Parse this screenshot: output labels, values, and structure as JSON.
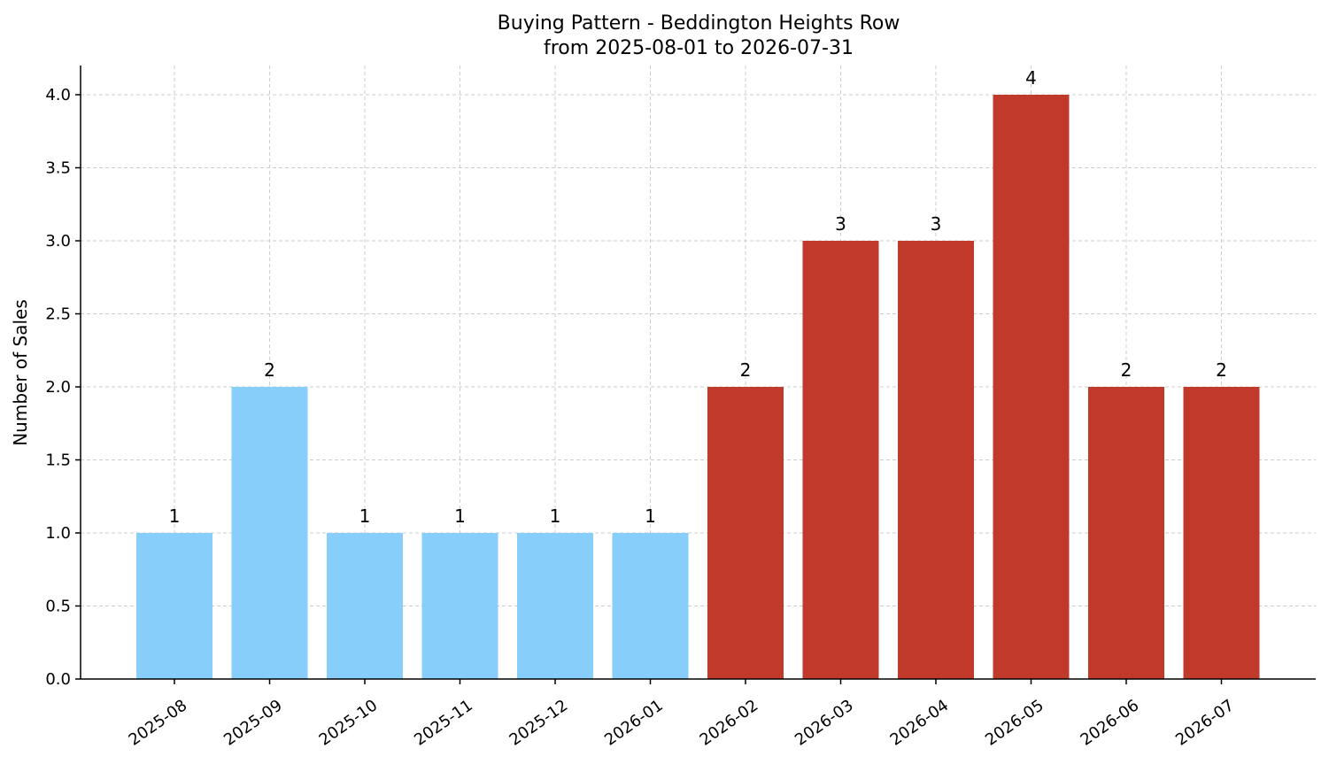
{
  "chart_data": {
    "type": "bar",
    "title": "Buying Pattern - Beddington Heights Row",
    "subtitle": "from 2025-08-01 to 2026-07-31",
    "xlabel": "",
    "ylabel": "Number of Sales",
    "categories": [
      "2025-08",
      "2025-09",
      "2025-10",
      "2025-11",
      "2025-12",
      "2026-01",
      "2026-02",
      "2026-03",
      "2026-04",
      "2026-05",
      "2026-06",
      "2026-07"
    ],
    "values": [
      1,
      2,
      1,
      1,
      1,
      1,
      2,
      3,
      3,
      4,
      2,
      2
    ],
    "data_labels": [
      "1",
      "2",
      "1",
      "1",
      "1",
      "1",
      "2",
      "3",
      "3",
      "4",
      "2",
      "2"
    ],
    "bar_colors": [
      "#87CEFA",
      "#87CEFA",
      "#87CEFA",
      "#87CEFA",
      "#87CEFA",
      "#87CEFA",
      "#C0392B",
      "#C0392B",
      "#C0392B",
      "#C0392B",
      "#C0392B",
      "#C0392B"
    ],
    "ylim": [
      0,
      4.2
    ],
    "yticks": [
      0,
      0.5,
      1,
      1.5,
      2,
      2.5,
      3,
      3.5,
      4
    ],
    "ytick_labels": [
      "0.0",
      "0.5",
      "1.0",
      "1.5",
      "2.0",
      "2.5",
      "3.0",
      "3.5",
      "4.0"
    ],
    "grid": true,
    "legend": "none"
  }
}
